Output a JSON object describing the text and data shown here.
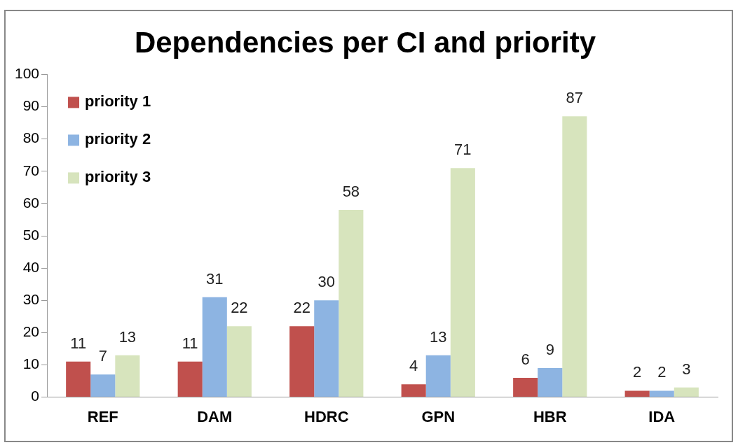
{
  "chart_data": {
    "type": "bar",
    "title": "Dependencies per CI and priority",
    "categories": [
      "REF",
      "DAM",
      "HDRC",
      "GPN",
      "HBR",
      "IDA"
    ],
    "series": [
      {
        "name": "priority 1",
        "color": "#c0504d",
        "values": [
          11,
          11,
          22,
          4,
          6,
          2
        ]
      },
      {
        "name": "priority 2",
        "color": "#8db4e2",
        "values": [
          7,
          31,
          30,
          13,
          9,
          2
        ]
      },
      {
        "name": "priority 3",
        "color": "#d7e4bd",
        "values": [
          13,
          22,
          58,
          71,
          87,
          3
        ]
      }
    ],
    "ylim": [
      0,
      100
    ],
    "yticks": [
      0,
      10,
      20,
      30,
      40,
      50,
      60,
      70,
      80,
      90,
      100
    ],
    "grid": false,
    "legend": "top left",
    "data_labels": true
  }
}
